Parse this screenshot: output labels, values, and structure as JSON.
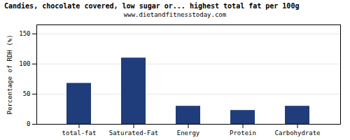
{
  "chart_data": {
    "type": "bar",
    "title": "Candies, chocolate covered, low sugar or... highest total fat per 100g",
    "subtitle": "www.dietandfitnesstoday.com",
    "categories": [
      "total-fat",
      "Saturated-Fat",
      "Energy",
      "Protein",
      "Carbohydrate"
    ],
    "values": [
      68,
      110,
      30,
      23,
      30
    ],
    "color": "#1f3d7a",
    "ylabel": "Percentage of RDH (%)",
    "ylim": [
      0,
      165
    ],
    "yticks": [
      0,
      50,
      100,
      150
    ],
    "grid": true
  }
}
